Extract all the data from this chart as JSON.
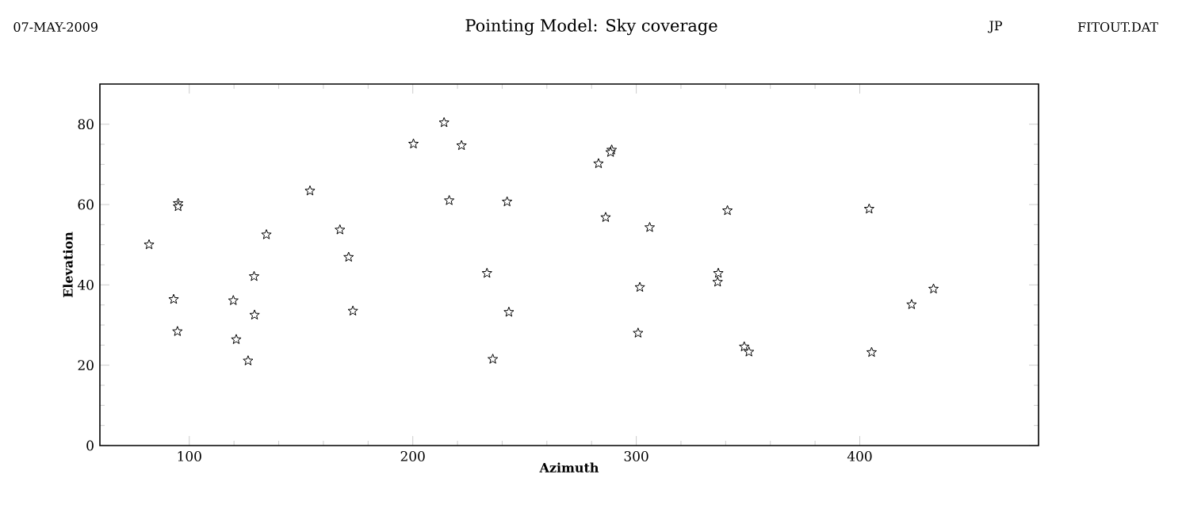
{
  "chart_data": {
    "type": "scatter",
    "title": "Pointing Model: Sky coverage",
    "annotations": [
      "07-MAY-2009",
      "JP",
      "FITOUT.DAT"
    ],
    "xlabel": "Azimuth",
    "ylabel": "Elevation",
    "x": [
      82,
      95,
      95,
      93,
      94.7,
      119.7,
      121,
      126.3,
      129,
      129.2,
      134.5,
      154,
      167.4,
      171.3,
      173.2,
      200.3,
      214,
      221.8,
      216.3,
      233.2,
      235.8,
      242.2,
      243,
      283.1,
      289,
      288.5,
      286.3,
      306,
      301.6,
      300.8,
      336.7,
      336.4,
      340.8,
      348.3,
      350.4,
      404.2,
      405.3,
      423.2,
      433
    ],
    "values": [
      50,
      60.3,
      59.5,
      36.4,
      28.4,
      36.1,
      26.4,
      21.1,
      42.1,
      32.5,
      52.5,
      63.4,
      53.7,
      46.9,
      33.5,
      75.1,
      80.4,
      74.7,
      61,
      42.9,
      21.5,
      60.7,
      33.2,
      70.2,
      73.6,
      73,
      56.8,
      54.3,
      39.4,
      28,
      42.9,
      40.7,
      58.5,
      24.6,
      23.3,
      58.9,
      23.2,
      35.1,
      39
    ],
    "color": "#000000",
    "marker": "star",
    "xlim": [
      60,
      480
    ],
    "ylim": [
      0,
      90
    ],
    "xticks": [
      100,
      200,
      300,
      400
    ],
    "yticks": [
      0,
      20,
      40,
      60,
      80
    ]
  }
}
